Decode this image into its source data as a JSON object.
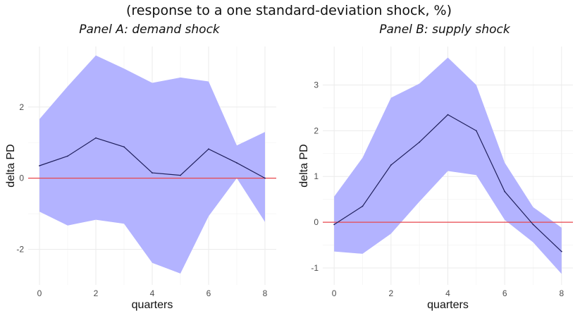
{
  "figure": {
    "title": "(response to a one standard-deviation shock, %)"
  },
  "chart_data": [
    {
      "type": "line",
      "title": "Panel A: demand shock",
      "xlabel": "quarters",
      "ylabel": "delta PD",
      "xlim": [
        -0.4,
        8.4
      ],
      "ylim": [
        -3.0,
        3.7
      ],
      "x_ticks": [
        0,
        2,
        4,
        6,
        8
      ],
      "y_ticks": [
        -2,
        0,
        2
      ],
      "grid": true,
      "reference_line": {
        "y": 0,
        "color": "#e8474c"
      },
      "x": [
        0,
        1,
        2,
        3,
        4,
        5,
        6,
        7,
        8
      ],
      "series": [
        {
          "values": [
            0.35,
            0.62,
            1.13,
            0.88,
            0.15,
            0.08,
            0.82,
            0.43,
            0.0
          ],
          "color": "#1f1f5c"
        }
      ],
      "band": {
        "upper": [
          1.66,
          2.58,
          3.45,
          3.08,
          2.68,
          2.83,
          2.72,
          0.92,
          1.3
        ],
        "lower": [
          -0.94,
          -1.33,
          -1.17,
          -1.28,
          -2.38,
          -2.68,
          -1.07,
          0.0,
          -1.23
        ],
        "color": "#b3b3ff"
      }
    },
    {
      "type": "line",
      "title": "Panel B: supply shock",
      "xlabel": "quarters",
      "ylabel": "delta PD",
      "xlim": [
        -0.4,
        8.4
      ],
      "ylim": [
        -1.37,
        3.84
      ],
      "x_ticks": [
        0,
        2,
        4,
        6,
        8
      ],
      "y_ticks": [
        -1,
        0,
        1,
        2,
        3
      ],
      "grid": true,
      "reference_line": {
        "y": 0,
        "color": "#e8474c"
      },
      "x": [
        0,
        1,
        2,
        3,
        4,
        5,
        6,
        7,
        8
      ],
      "series": [
        {
          "values": [
            -0.05,
            0.35,
            1.25,
            1.75,
            2.35,
            2.0,
            0.67,
            -0.05,
            -0.64
          ],
          "color": "#1f1f5c"
        }
      ],
      "band": {
        "upper": [
          0.56,
          1.41,
          2.72,
          3.03,
          3.6,
          3.0,
          1.3,
          0.33,
          -0.12
        ],
        "lower": [
          -0.64,
          -0.69,
          -0.25,
          0.45,
          1.12,
          1.03,
          0.05,
          -0.44,
          -1.13
        ],
        "color": "#b3b3ff"
      }
    }
  ]
}
